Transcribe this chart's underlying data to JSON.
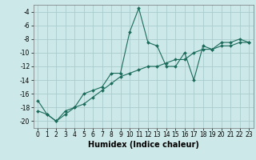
{
  "xlabel": "Humidex (Indice chaleur)",
  "bg_color": "#cce8e8",
  "grid_color": "#aacccc",
  "line_color": "#1a6b5a",
  "x_jagged": [
    0,
    1,
    2,
    3,
    4,
    5,
    6,
    7,
    8,
    9,
    10,
    11,
    12,
    13,
    14,
    15,
    16,
    17,
    18,
    19,
    20,
    21,
    22,
    23
  ],
  "y_jagged": [
    -17,
    -19,
    -20,
    -19,
    -18,
    -16,
    -15.5,
    -15,
    -13,
    -13,
    -7,
    -3.5,
    -8.5,
    -9,
    -12,
    -12,
    -10,
    -14,
    -9,
    -9.5,
    -8.5,
    -8.5,
    -8,
    -8.5
  ],
  "x_trend": [
    0,
    1,
    2,
    3,
    4,
    5,
    6,
    7,
    8,
    9,
    10,
    11,
    12,
    13,
    14,
    15,
    16,
    17,
    18,
    19,
    20,
    21,
    22,
    23
  ],
  "y_trend": [
    -18.5,
    -19,
    -20,
    -18.5,
    -18,
    -17.5,
    -16.5,
    -15.5,
    -14.5,
    -13.5,
    -13,
    -12.5,
    -12,
    -12,
    -11.5,
    -11,
    -11,
    -10,
    -9.5,
    -9.5,
    -9,
    -9,
    -8.5,
    -8.5
  ],
  "ylim": [
    -21,
    -3
  ],
  "xlim": [
    -0.5,
    23.5
  ],
  "yticks": [
    -4,
    -6,
    -8,
    -10,
    -12,
    -14,
    -16,
    -18,
    -20
  ],
  "xticks": [
    0,
    1,
    2,
    3,
    4,
    5,
    6,
    7,
    8,
    9,
    10,
    11,
    12,
    13,
    14,
    15,
    16,
    17,
    18,
    19,
    20,
    21,
    22,
    23
  ],
  "tick_fontsize": 5.5,
  "xlabel_fontsize": 7
}
